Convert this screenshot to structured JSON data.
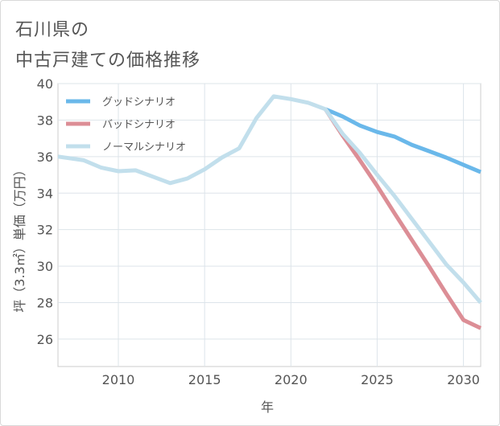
{
  "title_lines": [
    "石川県の",
    "中古戸建ての価格推移"
  ],
  "chart_data": {
    "type": "line",
    "xlabel": "年",
    "ylabel": "坪（3.3㎡）単価（万円）",
    "xlim": [
      2006.5,
      2031
    ],
    "ylim": [
      24.5,
      40
    ],
    "xticks": [
      2010,
      2015,
      2020,
      2025,
      2030
    ],
    "yticks": [
      26,
      28,
      30,
      32,
      34,
      36,
      38,
      40
    ],
    "grid": true,
    "legend_position": "top-left",
    "series": [
      {
        "name": "ノーマルシナリオ",
        "color": "#c2dfec",
        "x": [
          2006.5,
          2008,
          2009,
          2010,
          2011,
          2012,
          2013,
          2014,
          2015,
          2016,
          2017,
          2018,
          2019,
          2020,
          2021,
          2022,
          2023,
          2024,
          2025,
          2026,
          2027,
          2028,
          2029,
          2030,
          2031
        ],
        "values": [
          36.0,
          35.8,
          35.4,
          35.2,
          35.25,
          34.9,
          34.55,
          34.8,
          35.3,
          35.95,
          36.45,
          38.1,
          39.3,
          39.15,
          38.95,
          38.6,
          37.25,
          36.2,
          35.0,
          33.85,
          32.6,
          31.35,
          30.1,
          29.1,
          28.0
        ]
      },
      {
        "name": "グッドシナリオ",
        "color": "#6ab8ea",
        "x": [
          2022,
          2023,
          2024,
          2025,
          2026,
          2027,
          2028,
          2029,
          2030,
          2031
        ],
        "values": [
          38.6,
          38.2,
          37.7,
          37.35,
          37.1,
          36.65,
          36.3,
          35.95,
          35.55,
          35.15
        ]
      },
      {
        "name": "バッドシナリオ",
        "color": "#dc8e96",
        "x": [
          2022,
          2023,
          2024,
          2025,
          2026,
          2027,
          2028,
          2029,
          2030,
          2031
        ],
        "values": [
          38.6,
          37.15,
          35.8,
          34.4,
          32.9,
          31.45,
          30.0,
          28.5,
          27.05,
          26.6
        ]
      }
    ],
    "legend_order": [
      "グッドシナリオ",
      "バッドシナリオ",
      "ノーマルシナリオ"
    ]
  }
}
